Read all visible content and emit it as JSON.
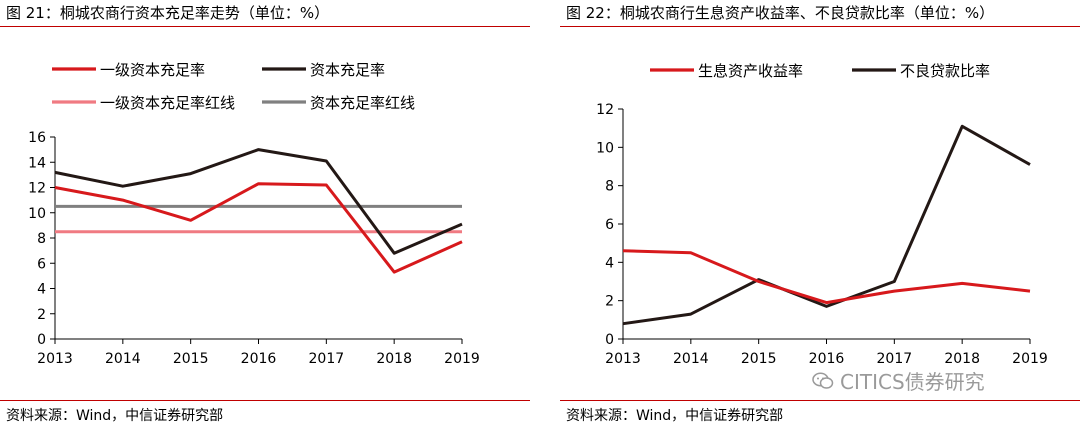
{
  "left": {
    "title": "图 21：桐城农商行资本充足率走势（单位：%）",
    "source": "资料来源：Wind，中信证券研究部"
  },
  "right": {
    "title": "图 22：桐城农商行生息资产收益率、不良贷款比率（单位：%）",
    "source": "资料来源：Wind，中信证券研究部"
  },
  "watermark": {
    "text": "CITICS债券研究",
    "icon": "wechat-icon"
  },
  "chart_data": [
    {
      "type": "line",
      "x": [
        "2013",
        "2014",
        "2015",
        "2016",
        "2017",
        "2018",
        "2019"
      ],
      "ylim": [
        0,
        16
      ],
      "yticks": [
        0,
        2,
        4,
        6,
        8,
        10,
        12,
        14,
        16
      ],
      "grid": false,
      "legend": "top",
      "series": [
        {
          "name": "一级资本充足率",
          "color": "#d7191c",
          "values": [
            12.0,
            11.0,
            9.4,
            12.3,
            12.2,
            5.3,
            7.7
          ]
        },
        {
          "name": "资本充足率",
          "color": "#231815",
          "values": [
            13.2,
            12.1,
            13.1,
            15.0,
            14.1,
            6.8,
            9.1
          ]
        },
        {
          "name": "一级资本充足率红线",
          "color": "#f07a82",
          "values": [
            8.5,
            8.5,
            8.5,
            8.5,
            8.5,
            8.5,
            8.5
          ]
        },
        {
          "name": "资本充足率红线",
          "color": "#808080",
          "values": [
            10.5,
            10.5,
            10.5,
            10.5,
            10.5,
            10.5,
            10.5
          ]
        }
      ]
    },
    {
      "type": "line",
      "x": [
        "2013",
        "2014",
        "2015",
        "2016",
        "2017",
        "2018",
        "2019"
      ],
      "ylim": [
        0,
        12
      ],
      "yticks": [
        0,
        2,
        4,
        6,
        8,
        10,
        12
      ],
      "grid": false,
      "legend": "top",
      "series": [
        {
          "name": "生息资产收益率",
          "color": "#d7191c",
          "values": [
            4.6,
            4.5,
            3.0,
            1.9,
            2.5,
            2.9,
            2.5
          ]
        },
        {
          "name": "不良贷款比率",
          "color": "#231815",
          "values": [
            0.8,
            1.3,
            3.1,
            1.7,
            3.0,
            11.1,
            9.1
          ]
        }
      ]
    }
  ]
}
